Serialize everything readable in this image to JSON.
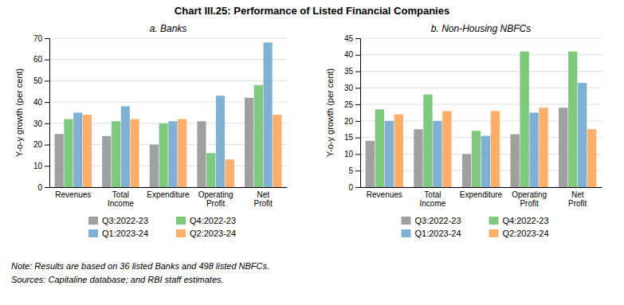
{
  "title": "Chart III.25: Performance of Listed Financial Companies",
  "annotations": [
    "Note: Results are based on 36 listed Banks and 498 listed NBFCs.",
    "Sources: Capitaline database; and RBI staff estimates."
  ],
  "chart_data": [
    {
      "type": "bar",
      "title": "a. Banks",
      "categories": [
        "Revenues",
        "Total\nIncome",
        "Expenditure",
        "Operating\nProfit",
        "Net\nProfit"
      ],
      "series": [
        {
          "name": "Q3:2022-23",
          "color": "#a0a0a0",
          "values": [
            25,
            24,
            20,
            31,
            42
          ]
        },
        {
          "name": "Q4:2022-23",
          "color": "#7fc97f",
          "values": [
            32,
            31,
            30,
            16,
            48
          ]
        },
        {
          "name": "Q1:2023-24",
          "color": "#80b1d3",
          "values": [
            35,
            38,
            31,
            43,
            68
          ]
        },
        {
          "name": "Q2:2023-24",
          "color": "#fdae6b",
          "values": [
            34,
            32,
            32,
            13,
            34
          ]
        }
      ],
      "ylabel": "Y-o-y growth (per cent)",
      "ylim": [
        0,
        70
      ],
      "yticks": [
        0,
        10,
        20,
        30,
        40,
        50,
        60,
        70
      ],
      "grid": true,
      "legend": "bottom"
    },
    {
      "type": "bar",
      "title": "b. Non-Housing NBFCs",
      "categories": [
        "Revenues",
        "Total\nIncome",
        "Expenditure",
        "Operating\nProfit",
        "Net\nProfit"
      ],
      "series": [
        {
          "name": "Q3:2022-23",
          "color": "#a0a0a0",
          "values": [
            14,
            17.5,
            10,
            16,
            24
          ]
        },
        {
          "name": "Q4:2022-23",
          "color": "#7fc97f",
          "values": [
            23.5,
            28,
            17,
            41,
            41
          ]
        },
        {
          "name": "Q1:2023-24",
          "color": "#80b1d3",
          "values": [
            20,
            20,
            15.5,
            22.5,
            31.5
          ]
        },
        {
          "name": "Q2:2023-24",
          "color": "#fdae6b",
          "values": [
            22,
            23,
            23,
            24,
            17.5
          ]
        }
      ],
      "ylabel": "Y-o-y growth (per cent)",
      "ylim": [
        0,
        45
      ],
      "yticks": [
        0,
        5,
        10,
        15,
        20,
        25,
        30,
        35,
        40,
        45
      ],
      "grid": true,
      "legend": "bottom"
    }
  ]
}
